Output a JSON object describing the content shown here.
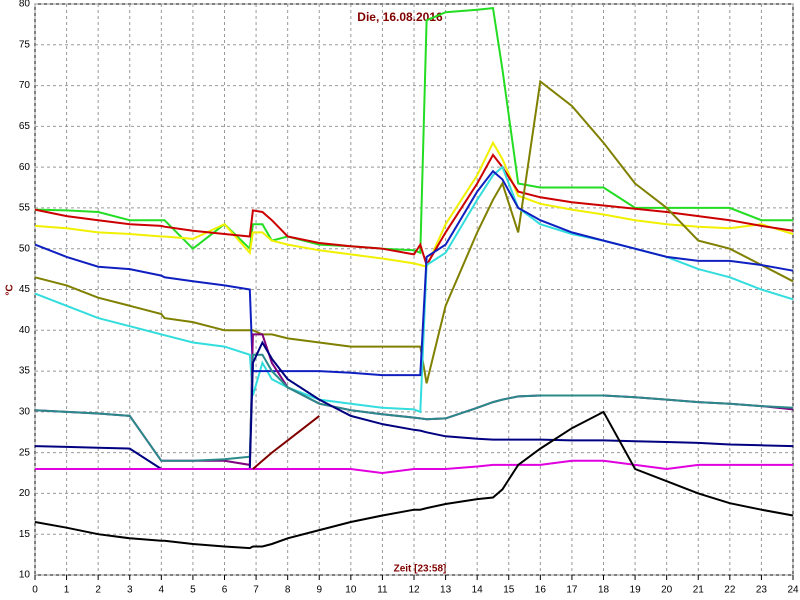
{
  "chart_data": {
    "type": "line",
    "title": "Die, 16.08.2016",
    "x_label": "Zeit [23:58]",
    "y_label": "°C",
    "x": [
      0,
      1,
      2,
      3,
      4,
      4.1,
      5,
      6,
      6.8,
      6.9,
      7.2,
      7.5,
      8,
      9,
      10,
      11,
      12,
      12.2,
      12.4,
      13,
      14,
      14.5,
      14.8,
      15.3,
      16,
      17,
      18,
      19,
      20,
      21,
      22,
      23,
      24
    ],
    "xlim": [
      0,
      24
    ],
    "xticks": [
      0,
      1,
      2,
      3,
      4,
      5,
      6,
      7,
      8,
      9,
      10,
      11,
      12,
      13,
      14,
      15,
      16,
      17,
      18,
      19,
      20,
      21,
      22,
      23,
      24
    ],
    "ylim": [
      10,
      80
    ],
    "yticks": [
      10,
      15,
      20,
      25,
      30,
      35,
      40,
      45,
      50,
      55,
      60,
      65,
      70,
      75,
      80
    ],
    "grid": true,
    "series": [
      {
        "color": "#22dd22",
        "values": [
          54.8,
          54.7,
          54.5,
          53.5,
          53.5,
          53.5,
          50,
          53,
          50,
          53,
          53,
          51,
          51.5,
          50.5,
          50.3,
          50,
          49.8,
          49.5,
          78,
          79,
          79.3,
          79.5,
          72,
          58,
          57.5,
          57.5,
          57.5,
          55,
          55,
          55,
          55,
          53.5,
          53.5
        ]
      },
      {
        "color": "#f0f000",
        "values": [
          52.8,
          52.5,
          52,
          51.8,
          51.5,
          51.5,
          51.2,
          53,
          49.5,
          52,
          52,
          51,
          50.5,
          49.8,
          49.3,
          48.8,
          48.2,
          48,
          47.8,
          53,
          59,
          63,
          61,
          56.5,
          55.5,
          54.8,
          54.2,
          53.5,
          53,
          52.7,
          52.5,
          53,
          51.8
        ]
      },
      {
        "color": "#cc0000",
        "values": [
          54.8,
          54,
          53.5,
          53,
          52.8,
          52.7,
          52.2,
          51.8,
          51.5,
          54.7,
          54.5,
          53.5,
          51.5,
          50.7,
          50.3,
          50,
          49.3,
          50.5,
          48,
          52,
          58,
          61.5,
          60,
          57,
          56.3,
          55.7,
          55.3,
          54.9,
          54.5,
          54,
          53.5,
          52.8,
          52.2
        ]
      },
      {
        "color": "#808000",
        "values": [
          46.5,
          45.5,
          44,
          43,
          42,
          41.5,
          41,
          40,
          40,
          40,
          39.5,
          39.5,
          39,
          38.5,
          38,
          38,
          38,
          38,
          33.5,
          43,
          52,
          56,
          58,
          52,
          70.5,
          67.5,
          63,
          58,
          55,
          51,
          50,
          48,
          46
        ]
      },
      {
        "color": "#33dddd",
        "values": [
          44.5,
          43,
          41.5,
          40.5,
          39.5,
          39.4,
          38.5,
          38,
          37,
          32,
          36,
          34,
          33,
          31.5,
          31,
          30.5,
          30.3,
          30,
          48,
          49.5,
          56,
          59,
          60,
          55,
          53,
          51.8,
          51,
          50,
          49,
          47.5,
          46.5,
          45,
          43.8
        ]
      },
      {
        "color": "#1020c0",
        "values": [
          50.5,
          49,
          47.8,
          47.5,
          46.7,
          46.5,
          46,
          45.5,
          45,
          35,
          35,
          35,
          35,
          35,
          34.8,
          34.5,
          34.5,
          34.5,
          49,
          50.5,
          57,
          59.5,
          58.5,
          55,
          53.5,
          52,
          51,
          50,
          49,
          48.5,
          48.5,
          48,
          47.3
        ]
      },
      {
        "color": "#800080",
        "values": [
          30.2,
          30,
          29.8,
          29.5,
          24,
          24,
          24,
          24,
          23.5,
          39.5,
          39.5,
          36,
          33,
          31,
          30.2,
          29.7,
          29.3,
          29.2,
          29.1,
          29.2,
          30.5,
          31.2,
          31.5,
          31.9,
          32,
          32,
          32,
          31.8,
          31.5,
          31.2,
          31,
          30.7,
          30.3
        ]
      },
      {
        "color": "#2a8a8a",
        "values": [
          30.2,
          30,
          29.8,
          29.5,
          24,
          24,
          24,
          24.2,
          24.5,
          37,
          37,
          35,
          33,
          31,
          30.2,
          29.7,
          29.3,
          29.2,
          29.1,
          29.2,
          30.5,
          31.2,
          31.5,
          31.9,
          32,
          32,
          32,
          31.8,
          31.5,
          31.2,
          31,
          30.7,
          30.5
        ]
      },
      {
        "color": "#000080",
        "values": [
          25.8,
          25.7,
          25.6,
          25.5,
          23,
          23,
          23,
          23,
          23,
          36,
          38.5,
          36.5,
          34,
          31.5,
          29.5,
          28.5,
          27.8,
          27.7,
          27.5,
          27,
          26.7,
          26.6,
          26.6,
          26.6,
          26.6,
          26.5,
          26.5,
          26.4,
          26.3,
          26.2,
          26,
          25.9,
          25.8
        ]
      },
      {
        "color": "#e000e0",
        "values": [
          23,
          23,
          23,
          23,
          23,
          23,
          23,
          23,
          23,
          23,
          23,
          23,
          23,
          23,
          23,
          22.5,
          23,
          23,
          23,
          23,
          23.3,
          23.5,
          23.5,
          23.5,
          23.5,
          24,
          24,
          23.5,
          23,
          23.5,
          23.5,
          23.5,
          23.5
        ]
      },
      {
        "color": "#000000",
        "values": [
          16.5,
          15.8,
          15,
          14.5,
          14.2,
          14.2,
          13.8,
          13.5,
          13.3,
          13.5,
          13.5,
          13.8,
          14.5,
          15.5,
          16.5,
          17.3,
          18,
          18,
          18.2,
          18.7,
          19.3,
          19.5,
          20.5,
          23.5,
          25.5,
          28,
          30,
          23,
          21.5,
          20,
          18.8,
          18,
          17.3
        ]
      },
      {
        "color": "#800000",
        "values": [
          null,
          null,
          null,
          null,
          null,
          null,
          null,
          null,
          null,
          23,
          24,
          25,
          26.5,
          29.5,
          null,
          null,
          null,
          null,
          null,
          null,
          null,
          null,
          null,
          null,
          null,
          null,
          null,
          null,
          null,
          null,
          null,
          null,
          null
        ]
      }
    ]
  }
}
